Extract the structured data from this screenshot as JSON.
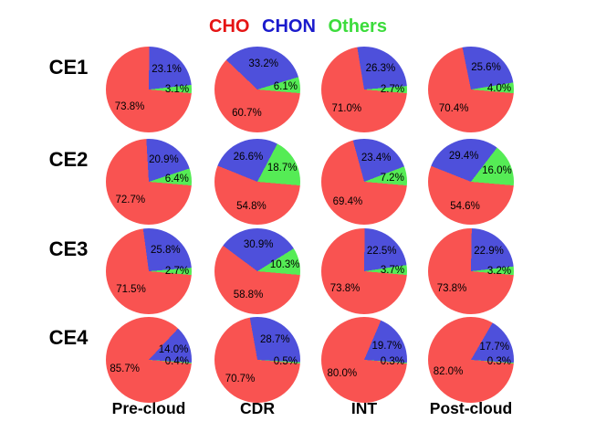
{
  "legend": {
    "items": [
      {
        "label": "CHO",
        "color": "#e51414"
      },
      {
        "label": "CHON",
        "color": "#1a1acc"
      },
      {
        "label": "Others",
        "color": "#3cdc3c"
      }
    ]
  },
  "chart_data": {
    "type": "pie",
    "title": "CHO CHON Others",
    "rows": [
      "CE1",
      "CE2",
      "CE3",
      "CE4"
    ],
    "columns": [
      "Pre-cloud",
      "CDR",
      "INT",
      "Post-cloud"
    ],
    "series": [
      "CHO",
      "CHON",
      "Others"
    ],
    "colors": {
      "CHO": "#f95351",
      "CHON": "#4e50db",
      "Others": "#55ec55"
    },
    "unit": "%",
    "values": {
      "CE1": {
        "Pre-cloud": {
          "CHO": 73.8,
          "CHON": 23.1,
          "Others": 3.1
        },
        "CDR": {
          "CHO": 60.7,
          "CHON": 33.2,
          "Others": 6.1
        },
        "INT": {
          "CHO": 71.0,
          "CHON": 26.3,
          "Others": 2.7
        },
        "Post-cloud": {
          "CHO": 70.4,
          "CHON": 25.6,
          "Others": 4.0
        }
      },
      "CE2": {
        "Pre-cloud": {
          "CHO": 72.7,
          "CHON": 20.9,
          "Others": 6.4
        },
        "CDR": {
          "CHO": 54.8,
          "CHON": 26.6,
          "Others": 18.7
        },
        "INT": {
          "CHO": 69.4,
          "CHON": 23.4,
          "Others": 7.2
        },
        "Post-cloud": {
          "CHO": 54.6,
          "CHON": 29.4,
          "Others": 16.0
        }
      },
      "CE3": {
        "Pre-cloud": {
          "CHO": 71.5,
          "CHON": 25.8,
          "Others": 2.7
        },
        "CDR": {
          "CHO": 58.8,
          "CHON": 30.9,
          "Others": 10.3
        },
        "INT": {
          "CHO": 73.8,
          "CHON": 22.5,
          "Others": 3.7
        },
        "Post-cloud": {
          "CHO": 73.8,
          "CHON": 22.9,
          "Others": 3.2
        }
      },
      "CE4": {
        "Pre-cloud": {
          "CHO": 85.7,
          "CHON": 14.0,
          "Others": 0.4
        },
        "CDR": {
          "CHO": 70.7,
          "CHON": 28.7,
          "Others": 0.5
        },
        "INT": {
          "CHO": 80.0,
          "CHON": 19.7,
          "Others": 0.3
        },
        "Post-cloud": {
          "CHO": 82.0,
          "CHON": 17.7,
          "Others": 0.3
        }
      }
    },
    "layout": {
      "grid": "4 rows (CE1-CE4) x 4 columns (Pre-cloud, CDR, INT, Post-cloud)",
      "slice_order_clockwise": [
        "CHON",
        "Others",
        "CHO"
      ],
      "others_cho_boundary_deg_from_top": 95,
      "labels": "percent values with one decimal shown inside slices",
      "legend_position": "top center, colored text"
    }
  }
}
